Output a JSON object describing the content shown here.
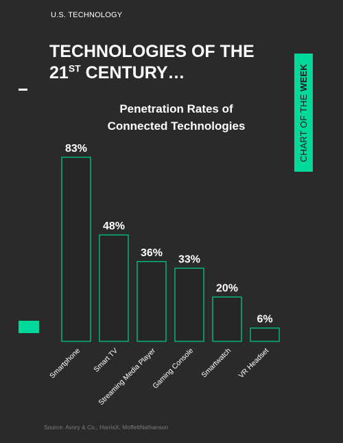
{
  "header": {
    "kicker": "U.S. TECHNOLOGY",
    "title_line1": "TECHNOLOGIES OF THE",
    "title_line2_pre": "21",
    "title_line2_sup": "ST",
    "title_line2_post": " CENTURY…"
  },
  "badge": {
    "text_normal": "CHART OF THE ",
    "text_bold": "WEEK"
  },
  "chart_data": {
    "type": "bar",
    "title_line1": "Penetration Rates of",
    "title_line2": "Connected Technologies",
    "categories": [
      "Smartphone",
      "Smart TV",
      "Streaming Media Player",
      "Gaming Console",
      "Smartwatch",
      "VR Headset"
    ],
    "values": [
      83,
      48,
      36,
      33,
      20,
      6
    ],
    "value_labels": [
      "83%",
      "48%",
      "36%",
      "33%",
      "20%",
      "6%"
    ],
    "xlabel": "",
    "ylabel": "",
    "ylim": [
      0,
      83
    ],
    "grid": false,
    "bar_stroke_color": "#00c98e"
  },
  "footer": {
    "source": "Source: Avory & Co., HarrisX, MoffettNathanson"
  }
}
